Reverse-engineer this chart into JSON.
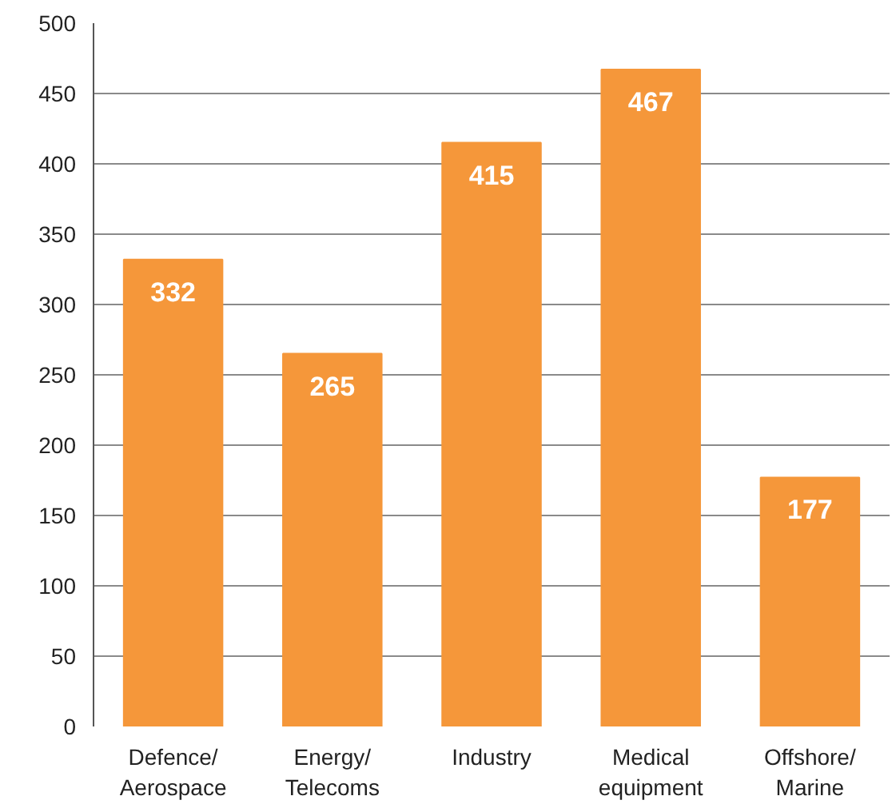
{
  "chart_data": {
    "type": "bar",
    "categories": [
      "Defence/\nAerospace",
      "Energy/\nTelecoms",
      "Industry",
      "Medical\nequipment",
      "Offshore/\nMarine"
    ],
    "values": [
      332,
      265,
      415,
      467,
      177
    ],
    "color": "#f5973a",
    "data_labels": true,
    "ylim": [
      0,
      500
    ],
    "yticks": [
      0,
      50,
      100,
      150,
      200,
      250,
      300,
      350,
      400,
      450,
      500
    ],
    "grid": "y"
  }
}
